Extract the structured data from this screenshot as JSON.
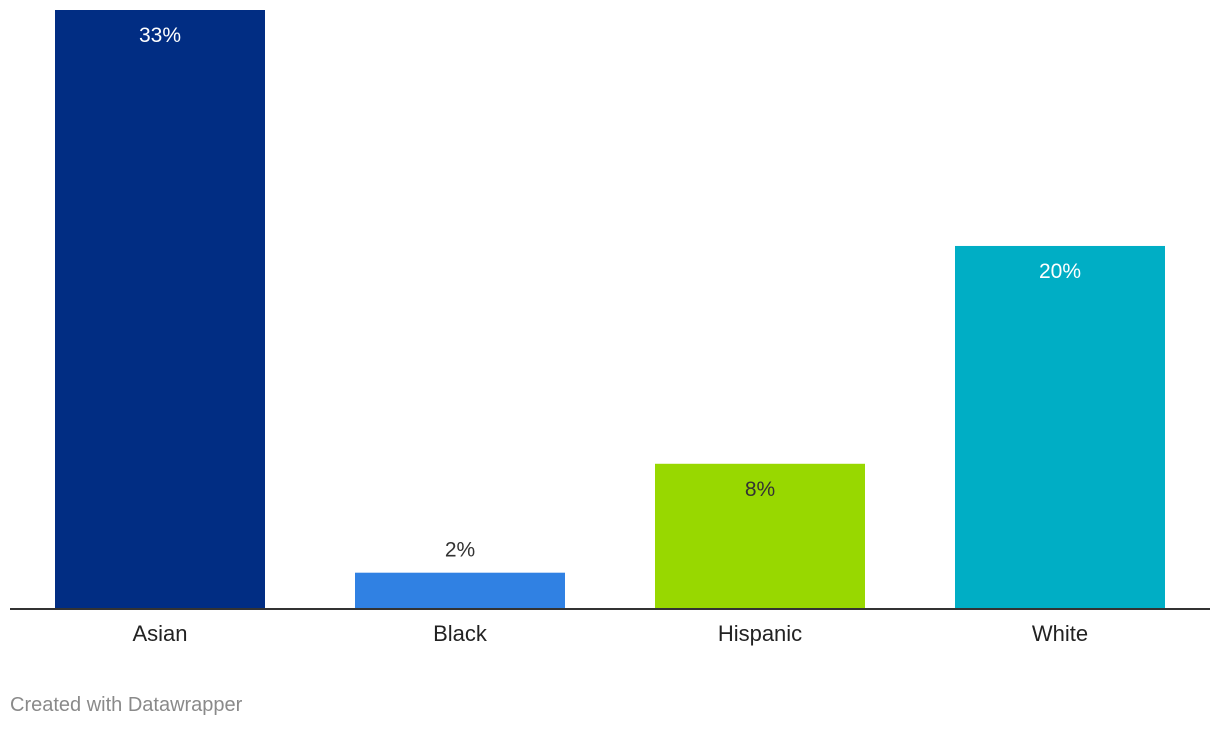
{
  "chart_data": {
    "type": "bar",
    "categories": [
      "Asian",
      "Black",
      "Hispanic",
      "White"
    ],
    "values": [
      33,
      2,
      8,
      20
    ],
    "value_labels": [
      "33%",
      "2%",
      "8%",
      "20%"
    ],
    "colors": [
      "#012d83",
      "#3081e3",
      "#98d800",
      "#00aec5"
    ],
    "label_colors": [
      "#ffffff",
      "#333333",
      "#333333",
      "#ffffff"
    ],
    "ylim": [
      0,
      33
    ],
    "grid": false,
    "legend": "none"
  },
  "footer": {
    "credit": "Created with Datawrapper"
  }
}
